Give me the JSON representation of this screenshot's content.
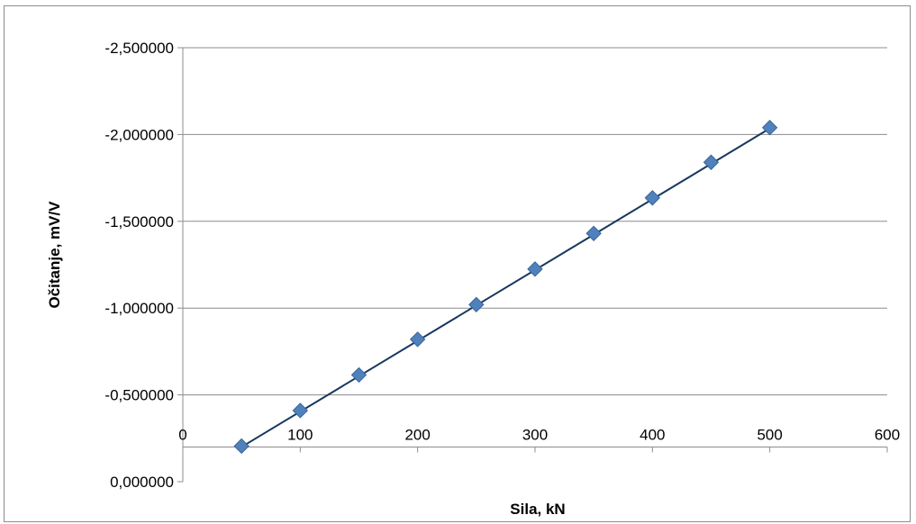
{
  "chart_data": {
    "type": "scatter",
    "title": "",
    "xlabel": "Sila, kN",
    "ylabel": "Očitanje, mV/V",
    "xlim": [
      0,
      600
    ],
    "ylim": [
      0,
      -2.5
    ],
    "y_axis_reversed": true,
    "x_ticks": [
      0,
      100,
      200,
      300,
      400,
      500,
      600
    ],
    "x_tick_labels": [
      "0",
      "100",
      "200",
      "300",
      "400",
      "500",
      "600"
    ],
    "y_ticks": [
      0,
      -0.5,
      -1.0,
      -1.5,
      -2.0,
      -2.5
    ],
    "y_tick_labels": [
      "0,000000",
      "-0,500000",
      "-1,000000",
      "-1,500000",
      "-2,000000",
      "-2,500000"
    ],
    "x_axis_position": "near y = -0.2, labels above the axis line",
    "grid": "horizontal major gridlines",
    "legend": "none",
    "series": [
      {
        "marker": "diamond",
        "x": [
          50,
          100,
          150,
          200,
          250,
          300,
          350,
          400,
          450,
          500
        ],
        "y": [
          -0.205,
          -0.41,
          -0.615,
          -0.82,
          -1.02,
          -1.225,
          -1.43,
          -1.635,
          -1.84,
          -2.04
        ]
      }
    ],
    "trendline": {
      "type": "linear",
      "x": [
        50,
        500
      ],
      "y": [
        -0.2,
        -2.035
      ]
    },
    "colors": {
      "marker": "#4f81bd",
      "marker_edge": "#3a6496",
      "trendline": "#17375e",
      "grid": "#8c8c8c",
      "frame": "#8c8c8c"
    }
  }
}
